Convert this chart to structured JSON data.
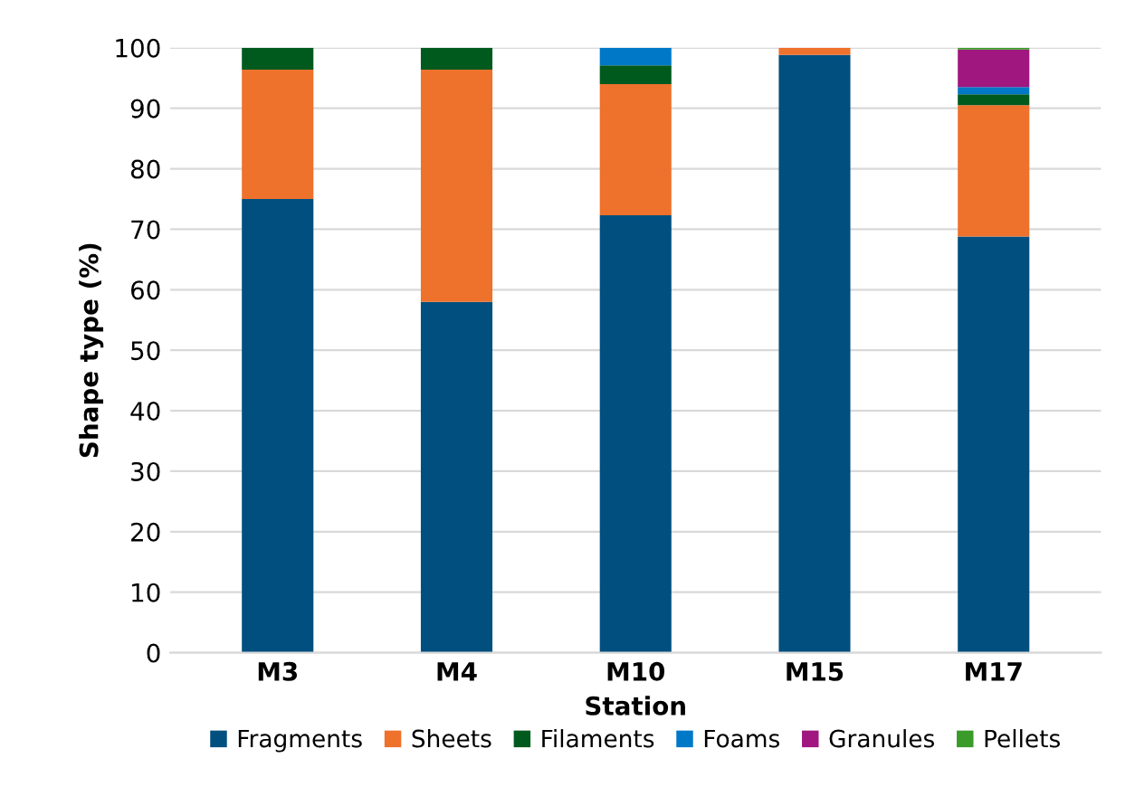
{
  "chart_data": {
    "type": "bar",
    "stacked": true,
    "xlabel": "Station",
    "ylabel": "Shape type (%)",
    "categories": [
      "M3",
      "M4",
      "M10",
      "M15",
      "M17"
    ],
    "series": [
      {
        "name": "Fragments",
        "color": "#004f7f",
        "values": [
          75,
          58,
          72.3,
          98.8,
          68.8
        ]
      },
      {
        "name": "Sheets",
        "color": "#ee712c",
        "values": [
          21.4,
          38.4,
          21.7,
          1.2,
          21.7
        ]
      },
      {
        "name": "Filaments",
        "color": "#005a1e",
        "values": [
          3.6,
          3.6,
          3.1,
          0,
          1.8
        ]
      },
      {
        "name": "Foams",
        "color": "#0078c8",
        "values": [
          0,
          0,
          2.9,
          0,
          1.2
        ]
      },
      {
        "name": "Granules",
        "color": "#a0177f",
        "values": [
          0,
          0,
          0,
          0,
          6.2
        ]
      },
      {
        "name": "Pellets",
        "color": "#3a9b2a",
        "values": [
          0,
          0,
          0,
          0,
          0.3
        ]
      }
    ],
    "ylim": [
      0,
      100
    ],
    "yticks": [
      0,
      10,
      20,
      30,
      40,
      50,
      60,
      70,
      80,
      90,
      100
    ],
    "grid": "y",
    "legend": "bottom"
  }
}
